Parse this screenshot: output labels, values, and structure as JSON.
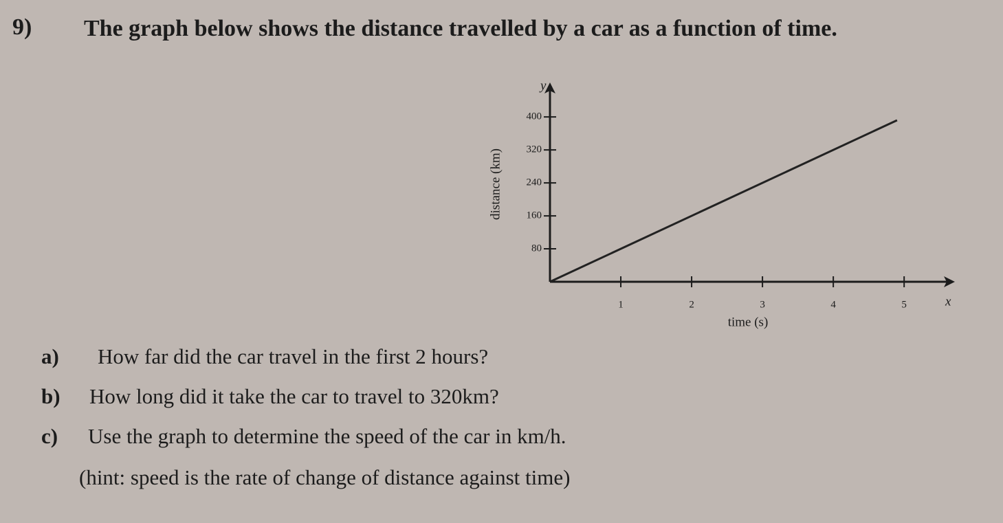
{
  "question": {
    "number": "9)",
    "text": "The graph below shows the distance travelled by a car as a function of time."
  },
  "chart_data": {
    "type": "line",
    "x_label": "time (s)",
    "y_label": "distance (km)",
    "x_axis_letter": "x",
    "y_axis_letter": "y",
    "x": [
      0,
      4.9
    ],
    "series": [
      {
        "color": "#222222",
        "values": [
          0,
          392
        ]
      }
    ],
    "xlim": [
      0,
      5.6
    ],
    "ylim": [
      0,
      467
    ],
    "xticks": [
      1,
      2,
      3,
      4,
      5
    ],
    "yticks": [
      80,
      160,
      240,
      320,
      400
    ]
  },
  "parts": [
    {
      "label": "a)",
      "text": "How far did the car travel in the first 2 hours?"
    },
    {
      "label": "b)",
      "text": "How long did it take the car to travel to 320km?"
    },
    {
      "label": "c)",
      "text": "Use the graph to determine the speed of the car in km/h."
    },
    {
      "text": "(hint: speed is the rate of change of distance against time)"
    }
  ]
}
